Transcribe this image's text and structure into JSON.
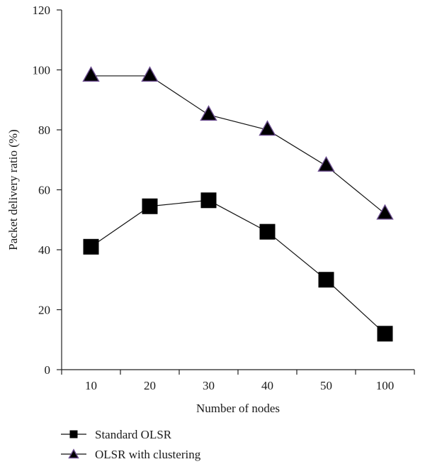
{
  "chart_data": {
    "type": "line",
    "title": "",
    "xlabel": "Number of nodes",
    "ylabel": "Packet delivery ratio (%)",
    "categories": [
      "10",
      "20",
      "30",
      "40",
      "50",
      "100"
    ],
    "ylim": [
      0,
      120
    ],
    "yticks": [
      0,
      20,
      40,
      60,
      80,
      100,
      120
    ],
    "grid": false,
    "legend_position": "bottom-left",
    "series": [
      {
        "name": "Standard OLSR",
        "marker": "square",
        "color": "#000000",
        "values": [
          41,
          54.5,
          56.5,
          46,
          30,
          12
        ]
      },
      {
        "name": "OLSR with clustering",
        "marker": "triangle",
        "color": "#6b4d8f",
        "values": [
          98,
          98,
          85,
          80,
          68,
          52
        ]
      }
    ]
  }
}
